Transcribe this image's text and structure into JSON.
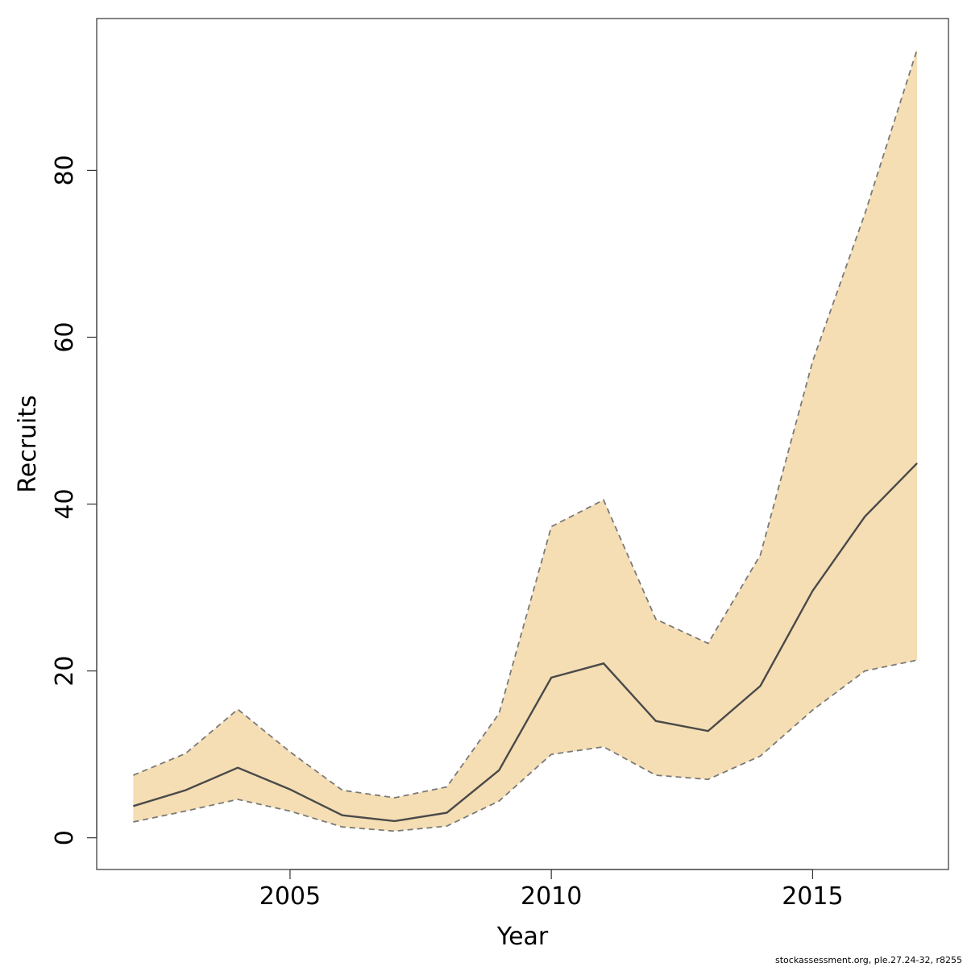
{
  "chart_data": {
    "type": "area",
    "xlabel": "Year",
    "ylabel": "Recruits",
    "xlim": [
      2001.3,
      2017.6
    ],
    "ylim": [
      -3.8,
      98.2
    ],
    "xticks": [
      2005,
      2010,
      2015
    ],
    "yticks": [
      0,
      20,
      40,
      60,
      80
    ],
    "grid": false,
    "x": [
      2002,
      2003,
      2004,
      2005,
      2006,
      2007,
      2008,
      2009,
      2010,
      2011,
      2012,
      2013,
      2014,
      2015,
      2016,
      2017
    ],
    "series": [
      {
        "role": "estimate",
        "values": [
          3.8,
          5.7,
          8.4,
          5.8,
          2.7,
          2.0,
          3.0,
          8.1,
          19.2,
          20.9,
          14.0,
          12.8,
          18.2,
          29.6,
          38.5,
          44.9
        ]
      },
      {
        "role": "lower",
        "values": [
          1.9,
          3.2,
          4.6,
          3.2,
          1.3,
          0.8,
          1.4,
          4.4,
          10.0,
          10.9,
          7.5,
          7.0,
          9.8,
          15.3,
          20.0,
          21.3
        ]
      },
      {
        "role": "upper",
        "values": [
          7.5,
          10.1,
          15.4,
          10.3,
          5.7,
          4.8,
          6.1,
          14.9,
          37.3,
          40.5,
          26.2,
          23.3,
          33.9,
          57.1,
          74.8,
          94.5
        ]
      }
    ],
    "colors": {
      "band": "#f5deb3",
      "estimate_line": "#4a4a4a",
      "bound_line": "#7a7a7a",
      "frame": "#333333"
    }
  },
  "footer": {
    "note": "stockassessment.org, ple.27.24-32, r8255"
  }
}
